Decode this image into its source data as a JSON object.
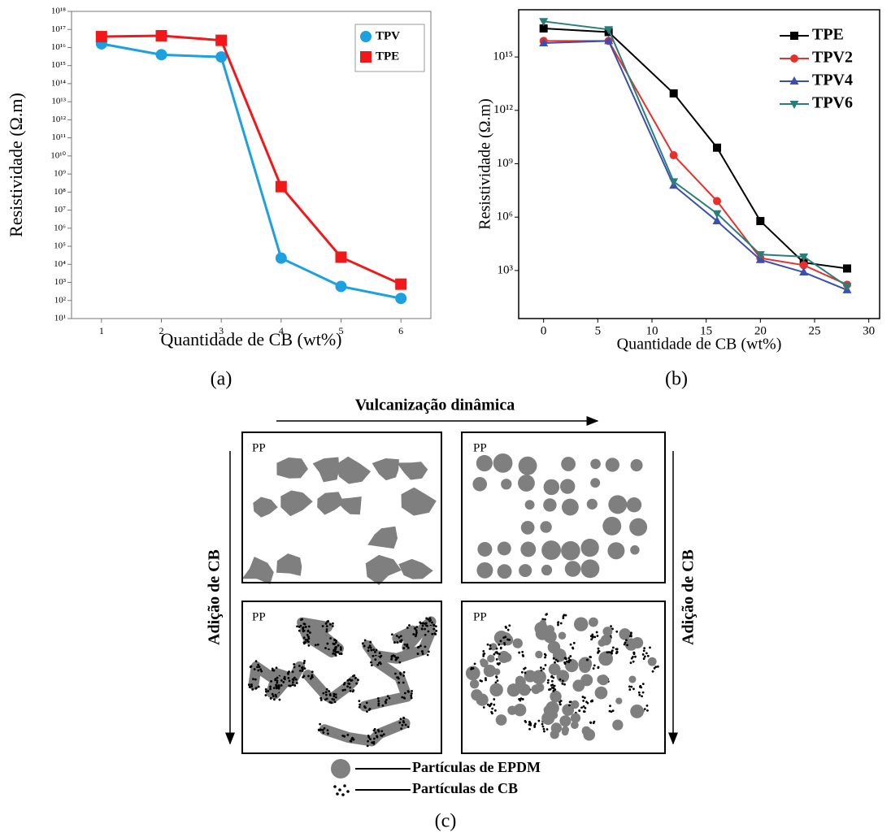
{
  "chart_data": [
    {
      "type": "line",
      "log_y": true,
      "legend": "upper right",
      "legend_box": true,
      "x_label": "Quantidade de CB (wt%)",
      "y_label": "Resistividade (Ω.m)",
      "x": [
        1,
        2,
        3,
        4,
        5,
        6
      ],
      "xlim": [
        0.5,
        6.5
      ],
      "xticks": [
        1,
        2,
        3,
        4,
        5,
        6
      ],
      "ylim": [
        10,
        1e+18
      ],
      "yticks": [
        {
          "value": 10,
          "label": "10¹"
        },
        {
          "value": 100,
          "label": "10²"
        },
        {
          "value": 1000,
          "label": "10³"
        },
        {
          "value": 10000.0,
          "label": "10⁴"
        },
        {
          "value": 100000.0,
          "label": "10⁵"
        },
        {
          "value": 1000000.0,
          "label": "10⁶"
        },
        {
          "value": 10000000.0,
          "label": "10⁷"
        },
        {
          "value": 100000000.0,
          "label": "10⁸"
        },
        {
          "value": 1000000000.0,
          "label": "10⁹"
        },
        {
          "value": 10000000000.0,
          "label": "10¹⁰"
        },
        {
          "value": 100000000000.0,
          "label": "10¹¹"
        },
        {
          "value": 1000000000000.0,
          "label": "10¹²"
        },
        {
          "value": 10000000000000.0,
          "label": "10¹³"
        },
        {
          "value": 100000000000000.0,
          "label": "10¹⁴"
        },
        {
          "value": 1000000000000000.0,
          "label": "10¹⁵"
        },
        {
          "value": 1e+16,
          "label": "10¹⁶"
        },
        {
          "value": 1e+17,
          "label": "10¹⁷"
        },
        {
          "value": 1e+18,
          "label": "10¹⁸"
        }
      ],
      "series": [
        {
          "name": "TPV",
          "color": "#1ca0e0",
          "marker": "circle",
          "values": [
            1.6e+16,
            4000000000000000.0,
            3000000000000000.0,
            22000.0,
            600,
            130
          ]
        },
        {
          "name": "TPE",
          "color": "#f01818",
          "marker": "square",
          "values": [
            4e+16,
            4.5e+16,
            2.5e+16,
            200000000.0,
            25000.0,
            800
          ]
        }
      ]
    },
    {
      "type": "line",
      "log_y": true,
      "legend": "upper right",
      "legend_box": false,
      "x_label": "Quantidade de CB (wt%)",
      "y_label": "Resistividade (Ω.m)",
      "x": [
        0,
        6,
        12,
        16,
        20,
        24,
        28
      ],
      "xlim": [
        -2.3,
        31
      ],
      "xticks": [
        0,
        5,
        10,
        15,
        20,
        25,
        30
      ],
      "ylim": [
        2,
        4.5e+17
      ],
      "yticks": [
        {
          "value": 1000,
          "label": "10³"
        },
        {
          "value": 1000000.0,
          "label": "10⁶"
        },
        {
          "value": 1000000000.0,
          "label": "10⁹"
        },
        {
          "value": 1000000000000.0,
          "label": "10¹²"
        },
        {
          "value": 1000000000000000.0,
          "label": "10¹⁵"
        }
      ],
      "series": [
        {
          "name": "TPE",
          "color": "#000000",
          "marker": "square",
          "values": [
            4e+16,
            2.5e+16,
            9000000000000.0,
            8000000000.0,
            600000.0,
            2800,
            1300
          ]
        },
        {
          "name": "TPV2",
          "color": "#e8302a",
          "marker": "circle",
          "values": [
            8000000000000000.0,
            8000000000000000.0,
            3000000000.0,
            8000000.0,
            5000,
            2000,
            160
          ]
        },
        {
          "name": "TPV4",
          "color": "#3a4fb0",
          "marker": "triangle",
          "values": [
            6000000000000000.0,
            8000000000000000.0,
            60000000.0,
            600000.0,
            4000,
            800,
            80
          ]
        },
        {
          "name": "TPV6",
          "color": "#287f7a",
          "marker": "triangle-down",
          "values": [
            1e+17,
            3.5e+16,
            100000000.0,
            1600000.0,
            8000,
            6000,
            130
          ]
        }
      ]
    }
  ],
  "panel_labels": [
    "(a)",
    "(b)",
    "(c)"
  ],
  "diagram": {
    "top_arrow_label": "Vulcanização dinâmica",
    "left_arrow_label": "Adição de CB",
    "right_arrow_label": "Adição de CB",
    "box_labels": [
      "PP",
      "PP",
      "PP",
      "PP"
    ],
    "legend": [
      "Partículas de EPDM",
      "Partículas de CB"
    ]
  }
}
